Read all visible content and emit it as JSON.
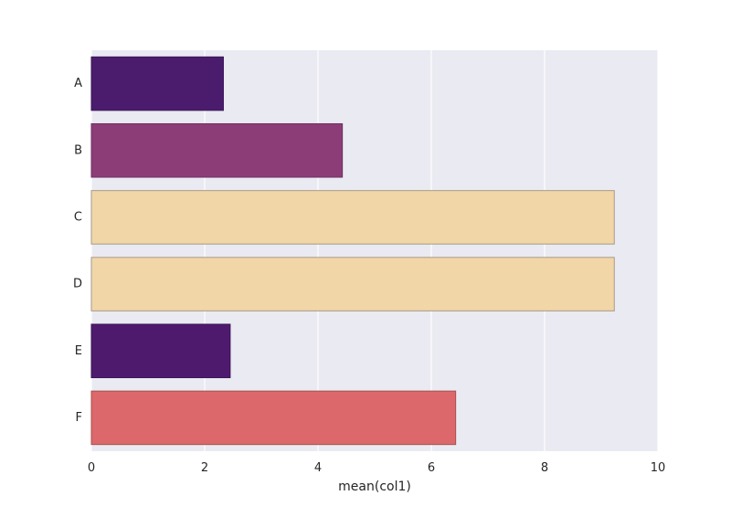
{
  "chart_data": {
    "type": "bar",
    "orientation": "horizontal",
    "categories": [
      "A",
      "B",
      "C",
      "D",
      "E",
      "F"
    ],
    "values": [
      2.33,
      4.43,
      9.23,
      9.23,
      2.45,
      6.43
    ],
    "colors": [
      "#4b1c6e",
      "#8c3d78",
      "#f1d6a8",
      "#f1d6a8",
      "#4e1a6e",
      "#dc686c"
    ],
    "edge_colors": [
      "#3a1656",
      "#6e2f5e",
      "#a89a86",
      "#a89a86",
      "#3a1656",
      "#a8504f"
    ],
    "title": "",
    "xlabel": "mean(col1)",
    "ylabel": "",
    "xlim": [
      0,
      10
    ],
    "xticks": [
      0,
      2,
      4,
      6,
      8,
      10
    ],
    "grid": "vertical",
    "background": "#eaeaf2",
    "grid_color": "#ffffff"
  }
}
